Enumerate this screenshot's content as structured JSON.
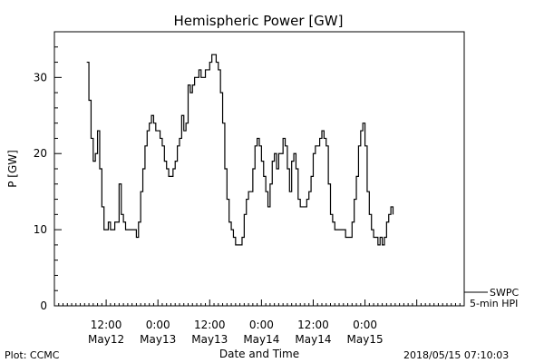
{
  "chart_data": {
    "type": "line",
    "title": "Hemispheric Power [GW]",
    "ylabel": "P [GW]",
    "xlabel": "Date and Time",
    "ylim": [
      0,
      36
    ],
    "xlim": [
      0,
      95
    ],
    "x_unit": "hours since 2018-05-12 00:00 UT",
    "y_ticks": [
      0,
      10,
      20,
      30
    ],
    "x_ticks": [
      {
        "x": 12,
        "line1": "12:00",
        "line2": "May12"
      },
      {
        "x": 24,
        "line1": "0:00",
        "line2": "May13"
      },
      {
        "x": 36,
        "line1": "12:00",
        "line2": "May13"
      },
      {
        "x": 48,
        "line1": "0:00",
        "line2": "May14"
      },
      {
        "x": 60,
        "line1": "12:00",
        "line2": "May14"
      },
      {
        "x": 72,
        "line1": "0:00",
        "line2": "May15"
      }
    ],
    "legend": {
      "line1": "SWPC",
      "line2": "5-min HPI",
      "position": "bottom-right, outside plot"
    },
    "footer_left": "Plot: CCMC",
    "footer_right": "2018/05/15 07:10:03",
    "series": [
      {
        "name": "SWPC",
        "color": "#000000",
        "points": [
          [
            7.5,
            32
          ],
          [
            8.0,
            27
          ],
          [
            8.5,
            22
          ],
          [
            9.0,
            19
          ],
          [
            9.5,
            20
          ],
          [
            10.0,
            23
          ],
          [
            10.5,
            18
          ],
          [
            11.0,
            13
          ],
          [
            11.5,
            10
          ],
          [
            12.0,
            10
          ],
          [
            12.5,
            11
          ],
          [
            13.0,
            10
          ],
          [
            13.5,
            10
          ],
          [
            14.0,
            11
          ],
          [
            14.5,
            11
          ],
          [
            15.0,
            16
          ],
          [
            15.5,
            12
          ],
          [
            16.0,
            11
          ],
          [
            16.5,
            10
          ],
          [
            17.0,
            10
          ],
          [
            17.5,
            10
          ],
          [
            18.0,
            10
          ],
          [
            18.5,
            10
          ],
          [
            19.0,
            9
          ],
          [
            19.5,
            11
          ],
          [
            20.0,
            15
          ],
          [
            20.5,
            18
          ],
          [
            21.0,
            21
          ],
          [
            21.5,
            23
          ],
          [
            22.0,
            24
          ],
          [
            22.5,
            25
          ],
          [
            23.0,
            24
          ],
          [
            23.5,
            23
          ],
          [
            24.0,
            23
          ],
          [
            24.5,
            22
          ],
          [
            25.0,
            21
          ],
          [
            25.5,
            19
          ],
          [
            26.0,
            18
          ],
          [
            26.5,
            17
          ],
          [
            27.0,
            17
          ],
          [
            27.5,
            18
          ],
          [
            28.0,
            19
          ],
          [
            28.5,
            21
          ],
          [
            29.0,
            22
          ],
          [
            29.5,
            25
          ],
          [
            30.0,
            23
          ],
          [
            30.5,
            24
          ],
          [
            31.0,
            29
          ],
          [
            31.5,
            28
          ],
          [
            32.0,
            29
          ],
          [
            32.5,
            30
          ],
          [
            33.0,
            30
          ],
          [
            33.5,
            31
          ],
          [
            34.0,
            30
          ],
          [
            34.5,
            30
          ],
          [
            35.0,
            31
          ],
          [
            35.5,
            31
          ],
          [
            36.0,
            32
          ],
          [
            36.5,
            33
          ],
          [
            37.0,
            33
          ],
          [
            37.5,
            32
          ],
          [
            38.0,
            31
          ],
          [
            38.5,
            28
          ],
          [
            39.0,
            24
          ],
          [
            39.5,
            18
          ],
          [
            40.0,
            14
          ],
          [
            40.5,
            11
          ],
          [
            41.0,
            10
          ],
          [
            41.5,
            9
          ],
          [
            42.0,
            8
          ],
          [
            42.5,
            8
          ],
          [
            43.0,
            8
          ],
          [
            43.5,
            9
          ],
          [
            44.0,
            12
          ],
          [
            44.5,
            14
          ],
          [
            45.0,
            15
          ],
          [
            45.5,
            15
          ],
          [
            46.0,
            18
          ],
          [
            46.5,
            21
          ],
          [
            47.0,
            22
          ],
          [
            47.5,
            21
          ],
          [
            48.0,
            19
          ],
          [
            48.5,
            17
          ],
          [
            49.0,
            15
          ],
          [
            49.5,
            13
          ],
          [
            50.0,
            16
          ],
          [
            50.5,
            19
          ],
          [
            51.0,
            20
          ],
          [
            51.5,
            18
          ],
          [
            52.0,
            20
          ],
          [
            52.5,
            20
          ],
          [
            53.0,
            22
          ],
          [
            53.5,
            21
          ],
          [
            54.0,
            18
          ],
          [
            54.5,
            15
          ],
          [
            55.0,
            19
          ],
          [
            55.5,
            20
          ],
          [
            56.0,
            18
          ],
          [
            56.5,
            14
          ],
          [
            57.0,
            13
          ],
          [
            57.5,
            13
          ],
          [
            58.0,
            13
          ],
          [
            58.5,
            14
          ],
          [
            59.0,
            15
          ],
          [
            59.5,
            17
          ],
          [
            60.0,
            20
          ],
          [
            60.5,
            21
          ],
          [
            61.0,
            21
          ],
          [
            61.5,
            22
          ],
          [
            62.0,
            23
          ],
          [
            62.5,
            22
          ],
          [
            63.0,
            21
          ],
          [
            63.5,
            16
          ],
          [
            64.0,
            12
          ],
          [
            64.5,
            11
          ],
          [
            65.0,
            10
          ],
          [
            65.5,
            10
          ],
          [
            66.0,
            10
          ],
          [
            66.5,
            10
          ],
          [
            67.0,
            10
          ],
          [
            67.5,
            9
          ],
          [
            68.0,
            9
          ],
          [
            68.5,
            9
          ],
          [
            69.0,
            11
          ],
          [
            69.5,
            14
          ],
          [
            70.0,
            17
          ],
          [
            70.5,
            21
          ],
          [
            71.0,
            23
          ],
          [
            71.5,
            24
          ],
          [
            72.0,
            21
          ],
          [
            72.5,
            15
          ],
          [
            73.0,
            12
          ],
          [
            73.5,
            10
          ],
          [
            74.0,
            9
          ],
          [
            74.5,
            9
          ],
          [
            75.0,
            8
          ],
          [
            75.5,
            9
          ],
          [
            76.0,
            8
          ],
          [
            76.5,
            9
          ],
          [
            77.0,
            11
          ],
          [
            77.5,
            12
          ],
          [
            78.0,
            13
          ],
          [
            78.5,
            12
          ]
        ]
      }
    ]
  }
}
